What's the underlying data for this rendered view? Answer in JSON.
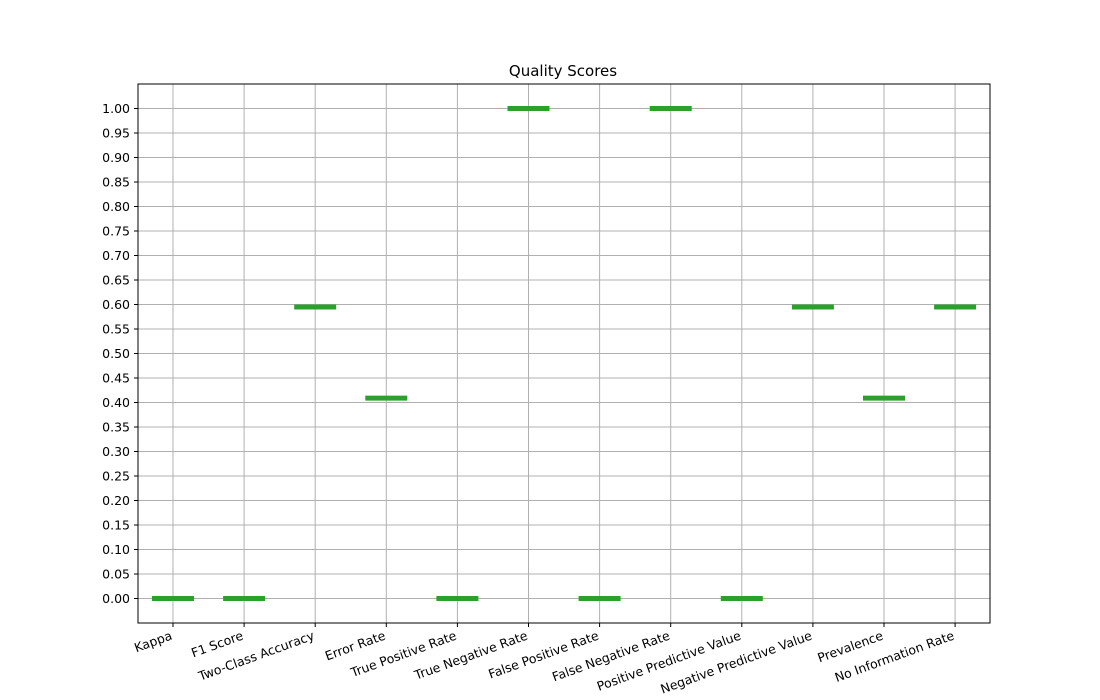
{
  "chart_data": {
    "type": "scatter",
    "title": "Quality Scores",
    "xlabel": "",
    "ylabel": "",
    "categories": [
      "Kappa",
      "F1 Score",
      "Two-Class Accuracy",
      "Error Rate",
      "True Positive Rate",
      "True Negative Rate",
      "False Positive Rate",
      "False Negative Rate",
      "Positive Predictive Value",
      "Negative Predictive Value",
      "Prevalence",
      "No Information Rate"
    ],
    "values": [
      0.0,
      0.0,
      0.595,
      0.409,
      0.0,
      1.0,
      0.0,
      1.0,
      0.0,
      0.595,
      0.409,
      0.595
    ],
    "y_ticks": [
      "0.00",
      "0.05",
      "0.10",
      "0.15",
      "0.20",
      "0.25",
      "0.30",
      "0.35",
      "0.40",
      "0.45",
      "0.50",
      "0.55",
      "0.60",
      "0.65",
      "0.70",
      "0.75",
      "0.80",
      "0.85",
      "0.90",
      "0.95",
      "1.00"
    ],
    "ylim": [
      -0.05,
      1.05
    ],
    "grid": true,
    "marker_color": "#2ca02c"
  }
}
